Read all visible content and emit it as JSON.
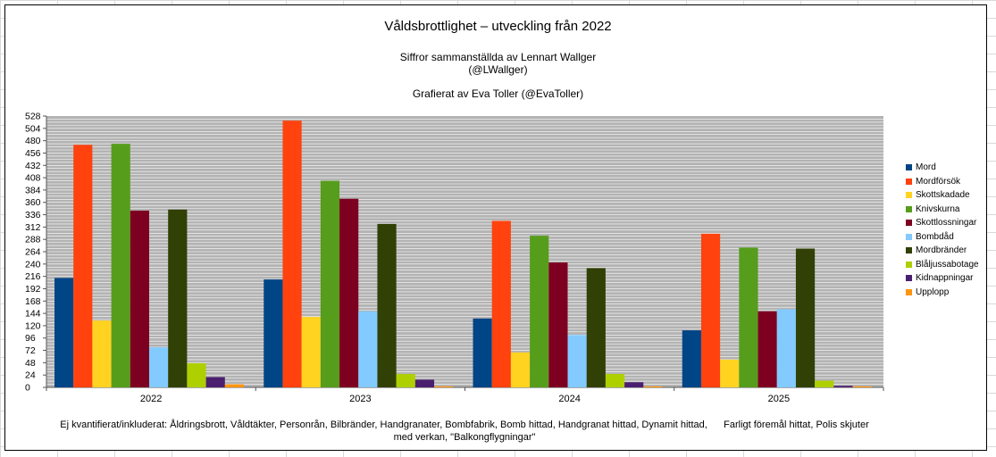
{
  "chart_data": {
    "type": "bar",
    "title": "Våldsbrottlighet  –  utveckling från 2022",
    "subtitle_lines": [
      "Siffror sammanställda av Lennart Wallger",
      "(@LWallger)",
      "Grafierat av Eva Toller (@EvaToller)"
    ],
    "categories": [
      "2022",
      "2023",
      "2024",
      "2025"
    ],
    "ylim": [
      0,
      528
    ],
    "ytick_step": 24,
    "grid": true,
    "legend_position": "right",
    "series": [
      {
        "name": "Mord",
        "color": "#004586",
        "values": [
          213,
          210,
          134,
          111
        ]
      },
      {
        "name": "Mordförsök",
        "color": "#ff420e",
        "values": [
          472,
          519,
          324,
          299
        ]
      },
      {
        "name": "Skottskadade",
        "color": "#ffd320",
        "values": [
          130,
          137,
          68,
          54
        ]
      },
      {
        "name": "Knivskurna",
        "color": "#579d1c",
        "values": [
          474,
          402,
          295,
          272
        ]
      },
      {
        "name": "Skottlossningar",
        "color": "#7e0021",
        "values": [
          344,
          367,
          243,
          148
        ]
      },
      {
        "name": "Bombdåd",
        "color": "#83caff",
        "values": [
          78,
          148,
          102,
          152
        ]
      },
      {
        "name": "Mordbränder",
        "color": "#314004",
        "values": [
          346,
          318,
          232,
          270
        ]
      },
      {
        "name": "Blåljussabotage",
        "color": "#aecf00",
        "values": [
          47,
          26,
          26,
          13
        ]
      },
      {
        "name": "Kidnappningar",
        "color": "#4b1f6f",
        "values": [
          20,
          15,
          10,
          3
        ]
      },
      {
        "name": "Upplopp",
        "color": "#ff950e",
        "values": [
          6,
          2,
          2,
          2
        ]
      }
    ],
    "footnote": {
      "line1": "Ej kvantifierat/inkluderat: Åldringsbrott, Våldtäkter, Personrån, Bilbränder, Handgranater, Bombfabrik, Bomb hittad, Handgranat hittad, Dynamit hittad,      Farligt föremål hittat, Polis skjuter",
      "line2": "med verkan, \"Balkongflygningar\""
    }
  }
}
